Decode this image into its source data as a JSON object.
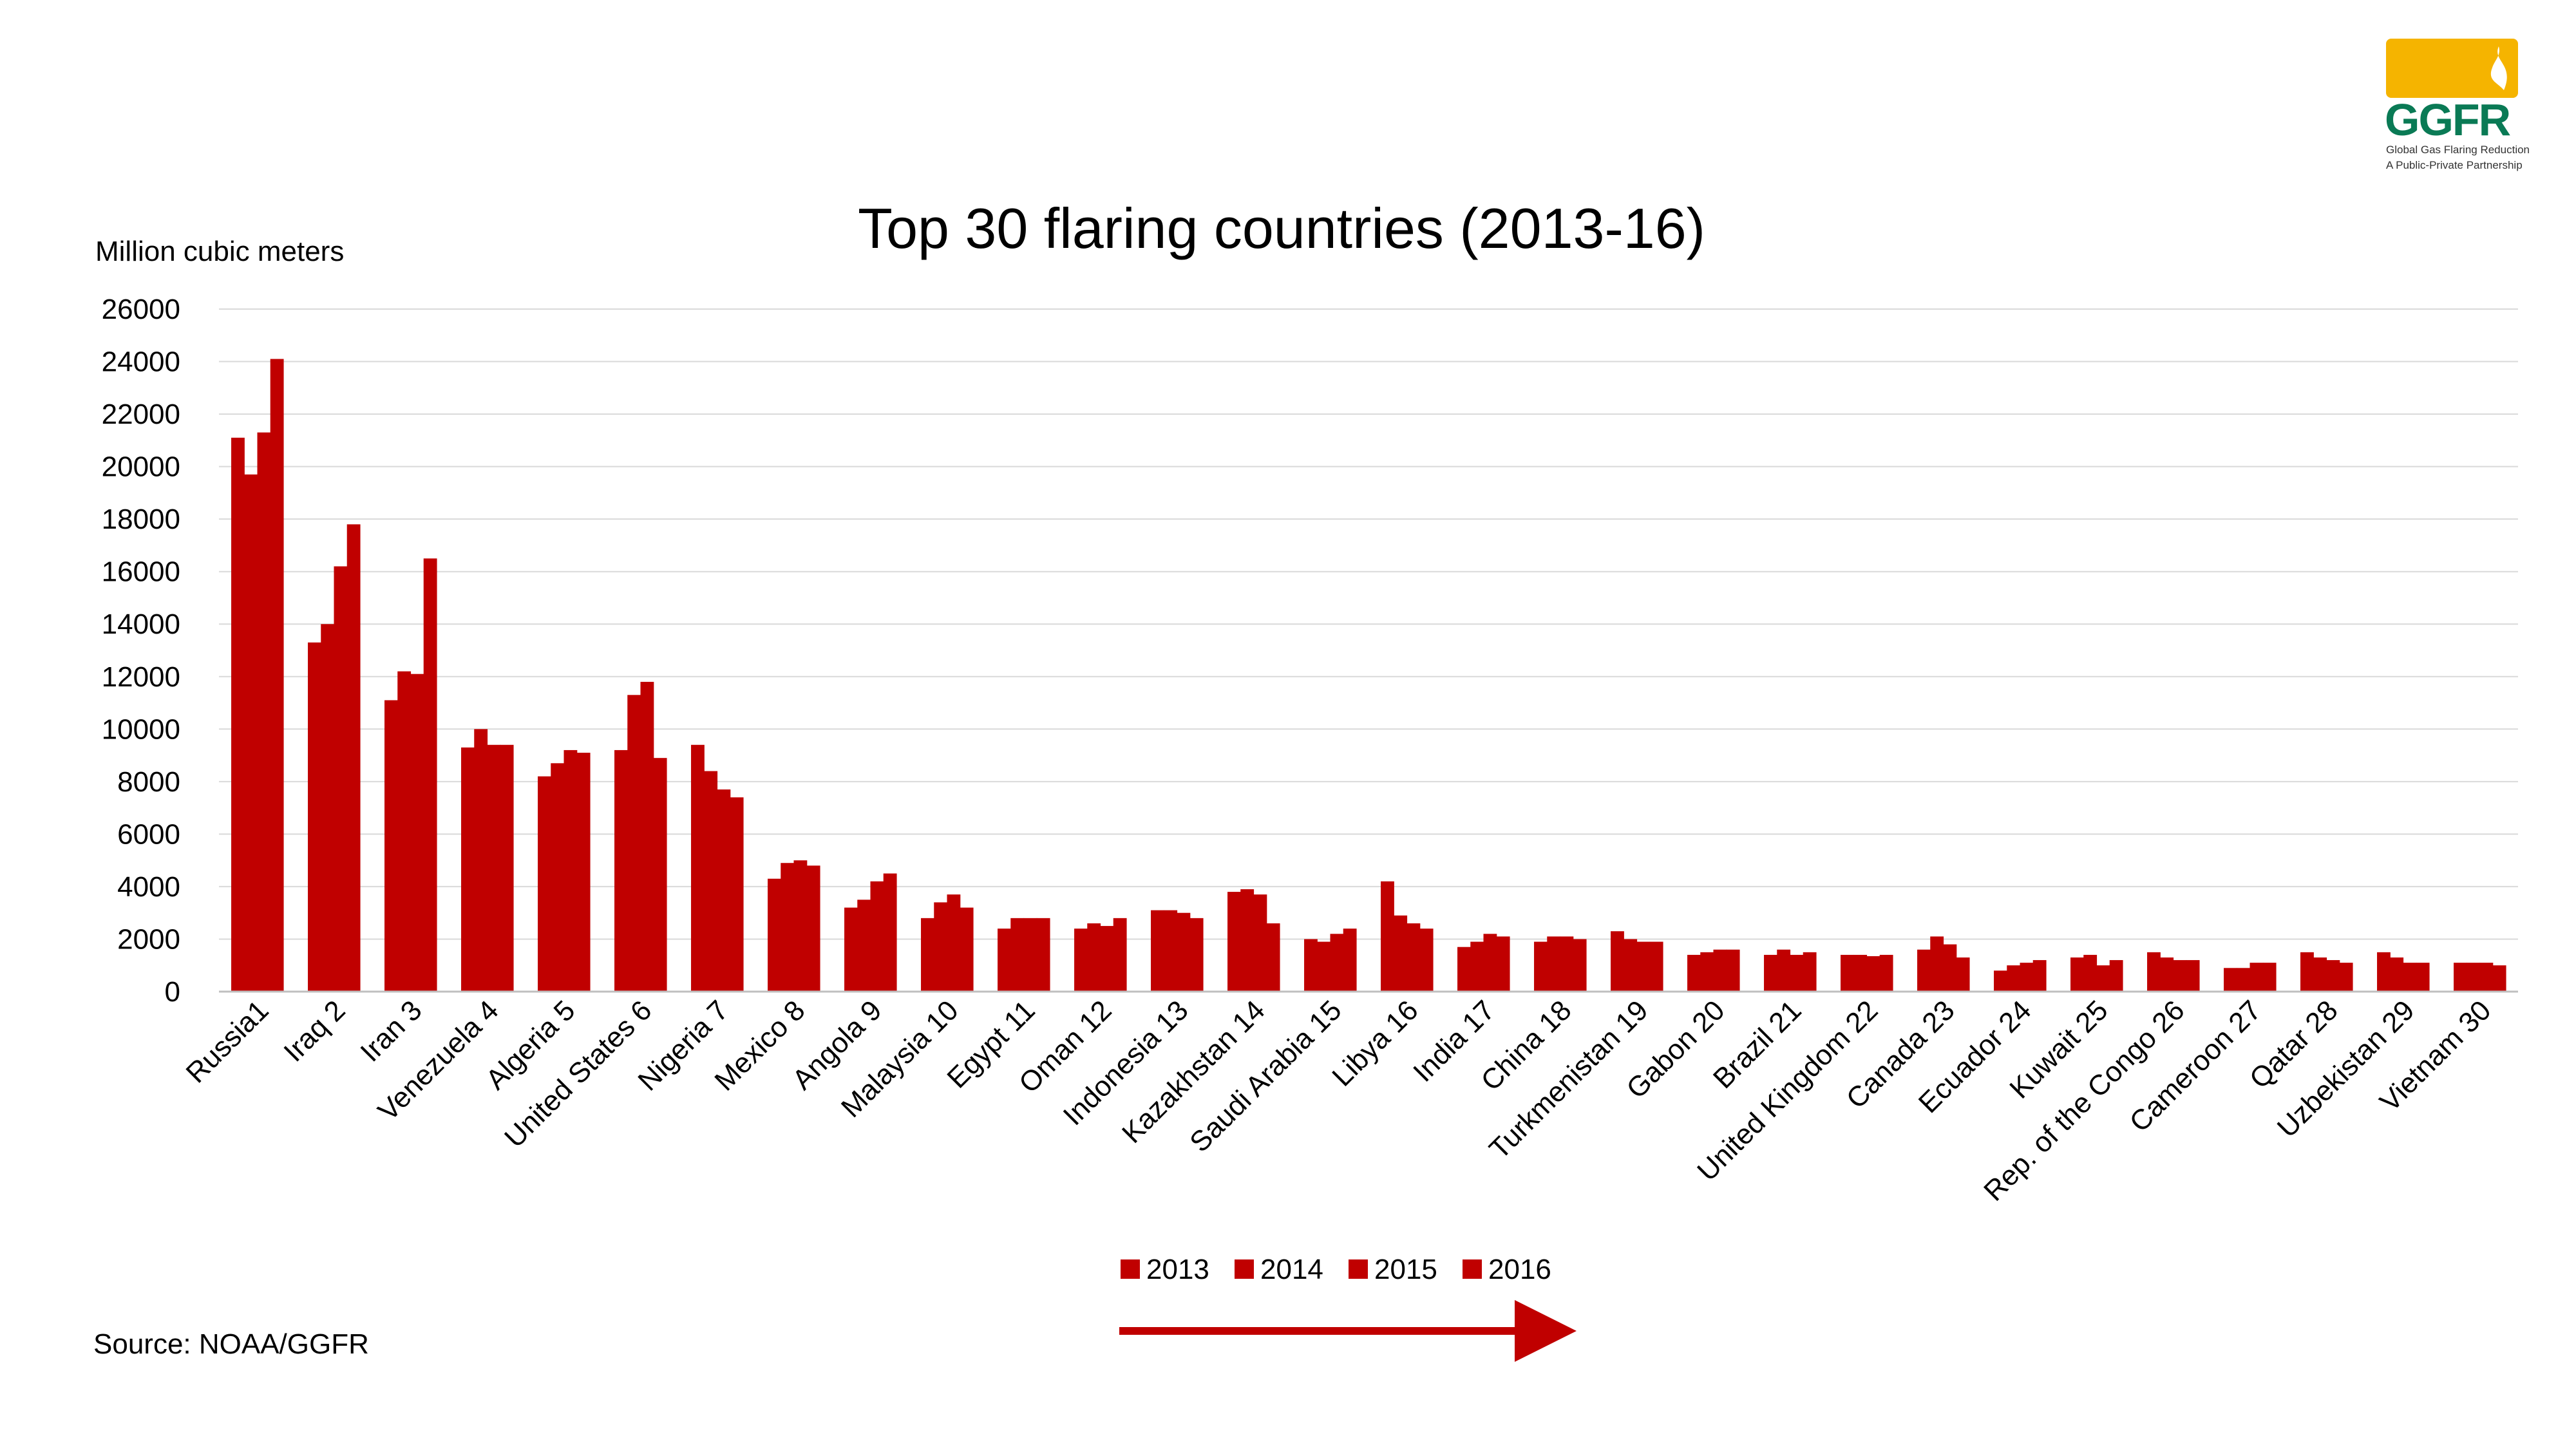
{
  "logo": {
    "text": "GGFR",
    "line1": "Global Gas Flaring Reduction",
    "line2": "A Public-Private Partnership"
  },
  "source": "Source: NOAA/GGFR",
  "colors": {
    "bar": "#C00000",
    "grid": "#D9D9D9",
    "axis": "#BFBFBF",
    "logo_gold": "#F5B400",
    "logo_green": "#0A7A55"
  },
  "chart_data": {
    "type": "bar",
    "title": "Top 30 flaring countries (2013-16)",
    "ylabel": "Million cubic meters",
    "xlabel": "",
    "ylim": [
      0,
      26000
    ],
    "ytick_step": 2000,
    "grid": true,
    "legend_position": "bottom",
    "categories": [
      "Russia1",
      "Iraq 2",
      "Iran 3",
      "Venezuela 4",
      "Algeria 5",
      "United States 6",
      "Nigeria 7",
      "Mexico 8",
      "Angola 9",
      "Malaysia 10",
      "Egypt 11",
      "Oman 12",
      "Indonesia 13",
      "Kazakhstan 14",
      "Saudi Arabia 15",
      "Libya 16",
      "India 17",
      "China 18",
      "Turkmenistan 19",
      "Gabon 20",
      "Brazil 21",
      "United Kingdom 22",
      "Canada 23",
      "Ecuador 24",
      "Kuwait 25",
      "Rep. of the Congo 26",
      "Cameroon 27",
      "Qatar 28",
      "Uzbekistan 29",
      "Vietnam 30"
    ],
    "series": [
      {
        "name": "2013",
        "values": [
          21100,
          13300,
          11100,
          9300,
          8200,
          9200,
          9400,
          4300,
          3200,
          2800,
          2400,
          2400,
          3100,
          3800,
          2000,
          4200,
          1700,
          1900,
          2300,
          1400,
          1400,
          1400,
          1600,
          800,
          1300,
          1500,
          900,
          1500,
          1500,
          1100
        ]
      },
      {
        "name": "2014",
        "values": [
          19700,
          14000,
          12200,
          10000,
          8700,
          11300,
          8400,
          4900,
          3500,
          3400,
          2800,
          2600,
          3100,
          3900,
          1900,
          2900,
          1900,
          2100,
          2000,
          1500,
          1600,
          1400,
          2100,
          1000,
          1400,
          1300,
          900,
          1300,
          1300,
          1100
        ]
      },
      {
        "name": "2015",
        "values": [
          21300,
          16200,
          12100,
          9400,
          9200,
          11800,
          7700,
          5000,
          4200,
          3700,
          2800,
          2500,
          3000,
          3700,
          2200,
          2600,
          2200,
          2100,
          1900,
          1600,
          1400,
          1350,
          1800,
          1100,
          1000,
          1200,
          1100,
          1200,
          1100,
          1100
        ]
      },
      {
        "name": "2016",
        "values": [
          24100,
          17800,
          16500,
          9400,
          9100,
          8900,
          7400,
          4800,
          4500,
          3200,
          2800,
          2800,
          2800,
          2600,
          2400,
          2400,
          2100,
          2000,
          1900,
          1600,
          1500,
          1400,
          1300,
          1200,
          1200,
          1200,
          1100,
          1100,
          1100,
          1000
        ]
      }
    ]
  }
}
